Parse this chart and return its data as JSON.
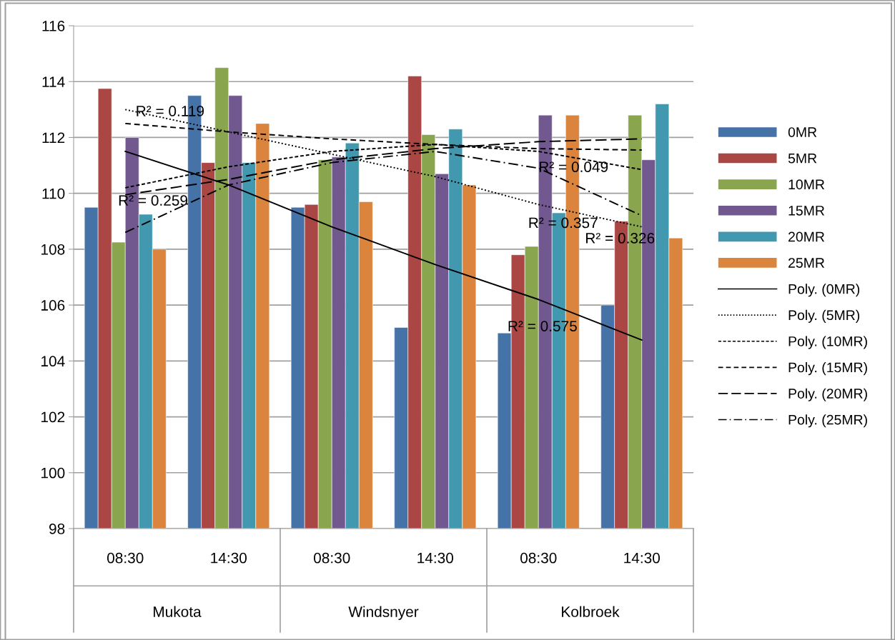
{
  "chart_data": {
    "type": "bar",
    "categories": [
      "08:30",
      "14:30",
      "08:30",
      "14:30",
      "08:30",
      "14:30"
    ],
    "series": [
      {
        "name": "0MR",
        "color": "#4572a7",
        "values": [
          109.5,
          113.5,
          109.5,
          105.2,
          105.0,
          106.0
        ]
      },
      {
        "name": "5MR",
        "color": "#aa4643",
        "values": [
          113.75,
          111.1,
          109.6,
          114.2,
          107.8,
          109.0
        ]
      },
      {
        "name": "10MR",
        "color": "#89a54e",
        "values": [
          108.25,
          114.5,
          111.2,
          112.1,
          108.1,
          112.8
        ]
      },
      {
        "name": "15MR",
        "color": "#71588f",
        "values": [
          112.0,
          113.5,
          111.3,
          110.7,
          112.8,
          111.2
        ]
      },
      {
        "name": "20MR",
        "color": "#4198af",
        "values": [
          109.25,
          111.1,
          111.8,
          112.3,
          109.3,
          113.2
        ]
      },
      {
        "name": "25MR",
        "color": "#db843d",
        "values": [
          108.0,
          112.5,
          109.7,
          110.3,
          112.8,
          108.4
        ]
      },
      {
        "name": "Poly. (0MR)",
        "type": "line",
        "color": "#000000",
        "line_style": "solid",
        "values": [
          111.5,
          110.3,
          108.8,
          107.45,
          106.2,
          104.75
        ]
      },
      {
        "name": "Poly. (5MR)",
        "type": "line",
        "color": "#000000",
        "line_style": "dotted",
        "values": [
          113.0,
          112.2,
          111.4,
          110.6,
          109.6,
          108.8
        ]
      },
      {
        "name": "Poly. (10MR)",
        "type": "line",
        "color": "#000000",
        "line_style": "shortdash",
        "values": [
          110.2,
          110.95,
          111.5,
          111.75,
          111.5,
          110.85
        ]
      },
      {
        "name": "Poly. (15MR)",
        "type": "line",
        "color": "#000000",
        "line_style": "dashed",
        "values": [
          112.5,
          112.2,
          111.95,
          111.75,
          111.6,
          111.55
        ]
      },
      {
        "name": "Poly. (20MR)",
        "type": "line",
        "color": "#000000",
        "line_style": "longdash",
        "values": [
          109.95,
          110.5,
          111.2,
          111.6,
          111.85,
          111.95
        ]
      },
      {
        "name": "Poly. (25MR)",
        "type": "line",
        "color": "#000000",
        "line_style": "dashdot",
        "values": [
          108.6,
          110.3,
          111.1,
          111.5,
          110.9,
          109.2
        ]
      }
    ],
    "annotations": [
      "Mukota",
      "Windsnyer",
      "Kolbroek",
      "R² = 0.119",
      "R² = 0.259",
      "R² = 0.049",
      "R² = 0.357",
      "R² = 0.326",
      "R² = 0.575"
    ],
    "ylim": [
      98,
      116
    ],
    "yticks": [
      98,
      100,
      102,
      104,
      106,
      108,
      110,
      112,
      114,
      116
    ],
    "grid": "y",
    "legend": "right",
    "marker": "none"
  }
}
